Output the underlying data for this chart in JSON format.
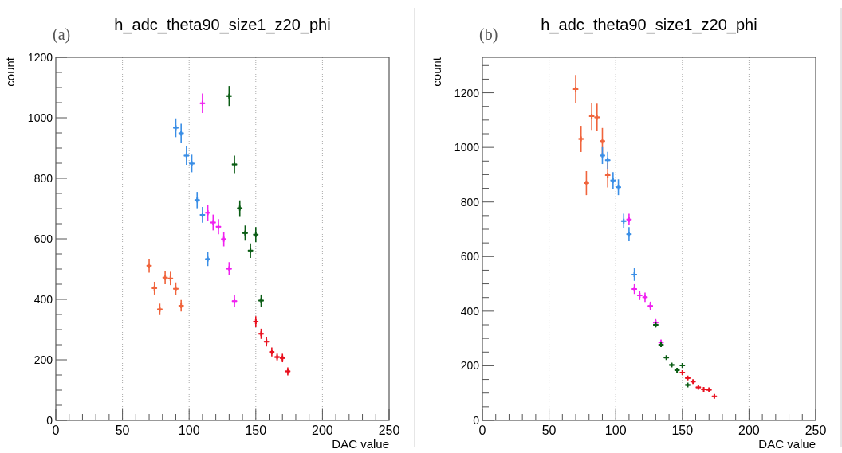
{
  "chart_data": [
    {
      "type": "scatter",
      "title": "h_adc_theta90_size1_z20_phi",
      "annotations": [
        "(a)"
      ],
      "xlabel": "DAC value",
      "ylabel": "count",
      "marker": "cross",
      "grid": "x",
      "xlim": [
        0,
        250
      ],
      "ylim": [
        0,
        1200
      ],
      "xticks": [
        0,
        {
          "value": 10,
          "label": null
        },
        {
          "value": 20,
          "label": null
        },
        {
          "value": 30,
          "label": null
        },
        {
          "value": 40,
          "label": null
        },
        50,
        {
          "value": 60,
          "label": null
        },
        {
          "value": 70,
          "label": null
        },
        {
          "value": 80,
          "label": null
        },
        {
          "value": 90,
          "label": null
        },
        100,
        {
          "value": 110,
          "label": null
        },
        {
          "value": 120,
          "label": null
        },
        {
          "value": 130,
          "label": null
        },
        {
          "value": 140,
          "label": null
        },
        150,
        {
          "value": 160,
          "label": null
        },
        {
          "value": 170,
          "label": null
        },
        {
          "value": 180,
          "label": null
        },
        {
          "value": 190,
          "label": null
        },
        200,
        {
          "value": 210,
          "label": null
        },
        {
          "value": 220,
          "label": null
        },
        {
          "value": 230,
          "label": null
        },
        {
          "value": 240,
          "label": null
        },
        250
      ],
      "yticks": [
        0,
        {
          "value": 50,
          "label": null
        },
        {
          "value": 100,
          "label": null
        },
        {
          "value": 150,
          "label": null
        },
        200,
        {
          "value": 250,
          "label": null
        },
        {
          "value": 300,
          "label": null
        },
        {
          "value": 350,
          "label": null
        },
        400,
        {
          "value": 450,
          "label": null
        },
        {
          "value": 500,
          "label": null
        },
        {
          "value": 550,
          "label": null
        },
        600,
        {
          "value": 650,
          "label": null
        },
        {
          "value": 700,
          "label": null
        },
        {
          "value": 750,
          "label": null
        },
        800,
        {
          "value": 850,
          "label": null
        },
        {
          "value": 900,
          "label": null
        },
        {
          "value": 950,
          "label": null
        },
        1000,
        {
          "value": 1050,
          "label": null
        },
        {
          "value": 1100,
          "label": null
        },
        {
          "value": 1150,
          "label": null
        },
        1200
      ],
      "series": [
        {
          "color": "#f0643c",
          "x": [
            70,
            74,
            78,
            82,
            86,
            90,
            94
          ],
          "values": [
            511,
            437,
            367,
            472,
            469,
            435,
            379
          ],
          "errors": [
            23,
            21,
            19,
            22,
            22,
            21,
            19
          ],
          "xerrors": [
            2,
            2,
            2,
            2,
            2,
            2,
            2
          ]
        },
        {
          "color": "#3a8ee6",
          "x": [
            90,
            94,
            98,
            102,
            106,
            110,
            114
          ],
          "values": [
            967,
            949,
            875,
            849,
            728,
            679,
            533
          ],
          "errors": [
            31,
            31,
            30,
            29,
            27,
            26,
            23
          ],
          "xerrors": [
            2,
            2,
            2,
            2,
            2,
            2,
            2
          ]
        },
        {
          "color": "#f020f0",
          "x": [
            110,
            114,
            118,
            122,
            126,
            130,
            134
          ],
          "values": [
            1048,
            686,
            654,
            640,
            599,
            501,
            394
          ],
          "errors": [
            32,
            26,
            26,
            25,
            24,
            22,
            20
          ],
          "xerrors": [
            2,
            2,
            2,
            2,
            2,
            2,
            2
          ]
        },
        {
          "color": "#0a5c14",
          "x": [
            130,
            134,
            138,
            142,
            146,
            150,
            154
          ],
          "values": [
            1072,
            846,
            701,
            619,
            561,
            614,
            396
          ],
          "errors": [
            33,
            29,
            26,
            25,
            24,
            25,
            20
          ],
          "xerrors": [
            2,
            2,
            2,
            2,
            2,
            2,
            2
          ]
        },
        {
          "color": "#e8101e",
          "x": [
            150,
            154,
            158,
            162,
            166,
            170,
            174
          ],
          "values": [
            326,
            286,
            260,
            226,
            209,
            206,
            162
          ],
          "errors": [
            18,
            17,
            16,
            15,
            14,
            14,
            13
          ],
          "xerrors": [
            2,
            2,
            2,
            2,
            2,
            2,
            2
          ]
        }
      ]
    },
    {
      "type": "scatter",
      "title": "h_adc_theta90_size1_z20_phi",
      "annotations": [
        "(b)"
      ],
      "xlabel": "DAC value",
      "ylabel": "count",
      "marker": "cross",
      "grid": "x",
      "xlim": [
        0,
        250
      ],
      "ylim": [
        0,
        1330
      ],
      "xticks": [
        0,
        {
          "value": 10,
          "label": null
        },
        {
          "value": 20,
          "label": null
        },
        {
          "value": 30,
          "label": null
        },
        {
          "value": 40,
          "label": null
        },
        50,
        {
          "value": 60,
          "label": null
        },
        {
          "value": 70,
          "label": null
        },
        {
          "value": 80,
          "label": null
        },
        {
          "value": 90,
          "label": null
        },
        100,
        {
          "value": 110,
          "label": null
        },
        {
          "value": 120,
          "label": null
        },
        {
          "value": 130,
          "label": null
        },
        {
          "value": 140,
          "label": null
        },
        150,
        {
          "value": 160,
          "label": null
        },
        {
          "value": 170,
          "label": null
        },
        {
          "value": 180,
          "label": null
        },
        {
          "value": 190,
          "label": null
        },
        200,
        {
          "value": 210,
          "label": null
        },
        {
          "value": 220,
          "label": null
        },
        {
          "value": 230,
          "label": null
        },
        {
          "value": 240,
          "label": null
        },
        250
      ],
      "yticks": [
        0,
        {
          "value": 50,
          "label": null
        },
        {
          "value": 100,
          "label": null
        },
        {
          "value": 150,
          "label": null
        },
        200,
        {
          "value": 250,
          "label": null
        },
        {
          "value": 300,
          "label": null
        },
        {
          "value": 350,
          "label": null
        },
        400,
        {
          "value": 450,
          "label": null
        },
        {
          "value": 500,
          "label": null
        },
        {
          "value": 550,
          "label": null
        },
        600,
        {
          "value": 650,
          "label": null
        },
        {
          "value": 700,
          "label": null
        },
        {
          "value": 750,
          "label": null
        },
        800,
        {
          "value": 850,
          "label": null
        },
        {
          "value": 900,
          "label": null
        },
        {
          "value": 950,
          "label": null
        },
        1000,
        {
          "value": 1050,
          "label": null
        },
        {
          "value": 1100,
          "label": null
        },
        {
          "value": 1150,
          "label": null
        },
        1200,
        {
          "value": 1250,
          "label": null
        },
        {
          "value": 1300,
          "label": null
        }
      ],
      "series": [
        {
          "color": "#f0643c",
          "x": [
            70,
            74,
            78,
            82,
            86,
            90,
            94
          ],
          "values": [
            1213,
            1031,
            869,
            1114,
            1110,
            1023,
            898
          ],
          "errors": [
            52,
            48,
            44,
            50,
            50,
            48,
            45
          ],
          "xerrors": [
            2,
            2,
            2,
            2,
            2,
            2,
            2
          ]
        },
        {
          "color": "#3a8ee6",
          "x": [
            90,
            94,
            98,
            102,
            106,
            110,
            114
          ],
          "values": [
            970,
            953,
            879,
            854,
            730,
            682,
            534
          ],
          "errors": [
            31,
            31,
            30,
            29,
            27,
            26,
            23
          ],
          "xerrors": [
            2,
            2,
            2,
            2,
            2,
            2,
            2
          ]
        },
        {
          "color": "#f020f0",
          "x": [
            110,
            114,
            118,
            122,
            126,
            130,
            134
          ],
          "values": [
            736,
            481,
            458,
            451,
            419,
            358,
            285
          ],
          "errors": [
            21,
            18,
            17,
            17,
            16,
            13,
            11
          ],
          "xerrors": [
            2,
            2,
            2,
            2,
            2,
            2,
            2
          ]
        },
        {
          "color": "#0a5c14",
          "x": [
            130,
            134,
            138,
            142,
            146,
            150,
            154
          ],
          "values": [
            350,
            277,
            230,
            203,
            184,
            201,
            130
          ],
          "errors": [
            10,
            8,
            6,
            6,
            5,
            6,
            5
          ],
          "xerrors": [
            2,
            2,
            2,
            2,
            2,
            2,
            2
          ]
        },
        {
          "color": "#e8101e",
          "x": [
            150,
            154,
            158,
            162,
            166,
            170,
            174
          ],
          "values": [
            175,
            155,
            142,
            121,
            114,
            112,
            88
          ],
          "errors": [
            6,
            5,
            5,
            4,
            4,
            4,
            3
          ],
          "xerrors": [
            2,
            2,
            2,
            2,
            2,
            2,
            2
          ]
        }
      ]
    }
  ]
}
